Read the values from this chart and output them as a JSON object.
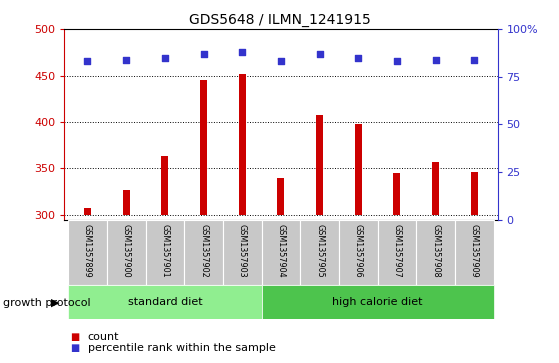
{
  "title": "GDS5648 / ILMN_1241915",
  "samples": [
    "GSM1357899",
    "GSM1357900",
    "GSM1357901",
    "GSM1357902",
    "GSM1357903",
    "GSM1357904",
    "GSM1357905",
    "GSM1357906",
    "GSM1357907",
    "GSM1357908",
    "GSM1357909"
  ],
  "counts": [
    308,
    327,
    363,
    445,
    452,
    340,
    408,
    398,
    345,
    357,
    346
  ],
  "percentiles": [
    83,
    84,
    85,
    87,
    88,
    83,
    87,
    85,
    83,
    84,
    84
  ],
  "ylim_left": [
    295,
    500
  ],
  "ylim_right": [
    0,
    100
  ],
  "yticks_left": [
    300,
    350,
    400,
    450,
    500
  ],
  "yticks_right": [
    0,
    25,
    50,
    75,
    100
  ],
  "bar_color": "#cc0000",
  "dot_color": "#3333cc",
  "bar_bottom": 300,
  "groups": [
    {
      "label": "standard diet",
      "n": 5,
      "color": "#90ee90"
    },
    {
      "label": "high calorie diet",
      "n": 6,
      "color": "#4dc44d"
    }
  ],
  "group_label": "growth protocol",
  "legend_count_label": "count",
  "legend_pct_label": "percentile rank within the sample",
  "label_bg": "#c8c8c8",
  "label_sep": "#ffffff",
  "title_color": "#000000",
  "left_axis_color": "#cc0000",
  "right_axis_color": "#3333cc"
}
